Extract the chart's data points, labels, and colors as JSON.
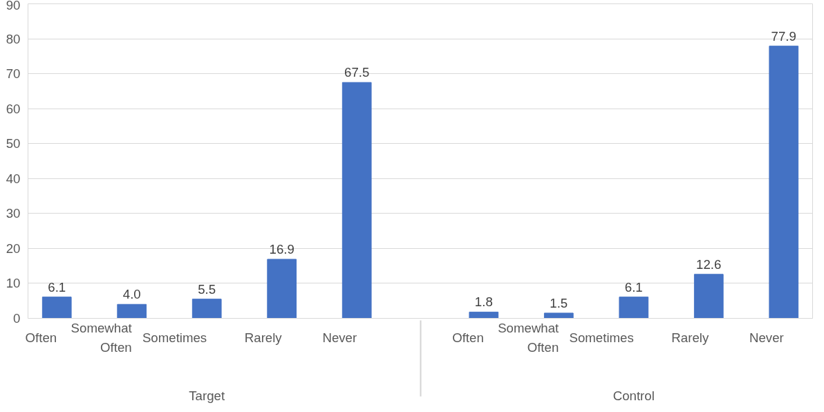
{
  "chart_data": {
    "type": "bar",
    "categories": [
      "Often",
      "Somewhat Often",
      "Sometimes",
      "Rarely",
      "Never",
      "Often",
      "Somewhat Often",
      "Sometimes",
      "Rarely",
      "Never"
    ],
    "values": [
      6.1,
      4.0,
      5.5,
      16.9,
      67.5,
      1.8,
      1.5,
      6.1,
      12.6,
      77.9
    ],
    "color": "#4472c4",
    "ylim": [
      0,
      90
    ],
    "yticks": [
      0,
      10,
      20,
      30,
      40,
      50,
      60,
      70,
      80,
      90
    ],
    "grid": "y",
    "value_labels": [
      "6.1",
      "4.0",
      "5.5",
      "16.9",
      "67.5",
      "1.8",
      "1.5",
      "6.1",
      "12.6",
      "77.9"
    ],
    "annotations": [
      "Target",
      "Control"
    ]
  }
}
